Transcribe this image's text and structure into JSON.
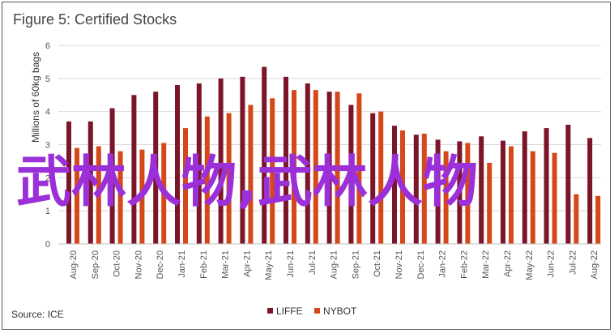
{
  "title": "Figure 5: Certified Stocks",
  "source": "Source: ICE",
  "watermark": "武林人物,武林人物",
  "colors": {
    "LIFFE": "#7b1528",
    "NYBOT": "#d5481a",
    "grid": "#d9d9d9",
    "watermark": "#9b30d9"
  },
  "chart_data": {
    "type": "bar",
    "title": "Figure 5: Certified Stocks",
    "ylabel": "Millions of 60kg bags",
    "ylim": [
      0,
      6
    ],
    "yticks": [
      0,
      1,
      2,
      3,
      4,
      5,
      6
    ],
    "legend_position": "bottom",
    "grid": true,
    "categories": [
      "Aug-20",
      "Sep-20",
      "Oct-20",
      "Nov-20",
      "Dec-20",
      "Jan-21",
      "Feb-21",
      "Mar-21",
      "Apr-21",
      "May-21",
      "Jun-21",
      "Jul-21",
      "Aug-21",
      "Sep-21",
      "Oct-21",
      "Nov-21",
      "Dec-21",
      "Jan-22",
      "Feb-22",
      "Mar-22",
      "Apr-22",
      "May-22",
      "Jun-22",
      "Jul-22",
      "Aug-22"
    ],
    "series": [
      {
        "name": "LIFFE",
        "values": [
          3.7,
          3.7,
          4.1,
          4.5,
          4.6,
          4.8,
          4.85,
          5.0,
          5.05,
          5.35,
          5.05,
          4.85,
          4.6,
          4.2,
          3.95,
          3.57,
          3.3,
          3.15,
          3.1,
          3.25,
          3.12,
          3.4,
          3.5,
          3.6,
          3.2
        ]
      },
      {
        "name": "NYBOT",
        "values": [
          2.9,
          2.95,
          2.8,
          2.85,
          3.05,
          3.5,
          3.85,
          3.95,
          4.2,
          4.4,
          4.65,
          4.65,
          4.6,
          4.55,
          4.0,
          3.43,
          3.33,
          2.8,
          3.05,
          2.45,
          2.95,
          2.8,
          2.75,
          1.5,
          1.45
        ]
      }
    ]
  }
}
